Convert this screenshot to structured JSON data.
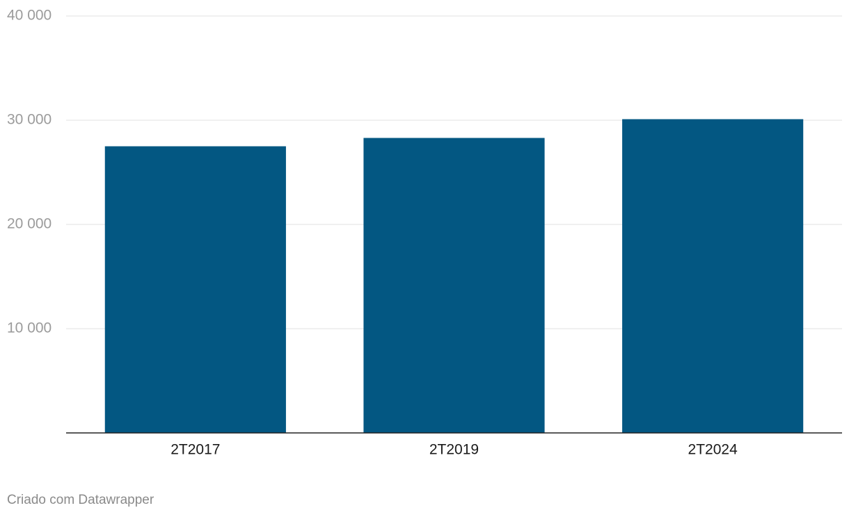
{
  "chart_data": {
    "type": "bar",
    "categories": [
      "2T2017",
      "2T2019",
      "2T2024"
    ],
    "values": [
      27500,
      28300,
      30100
    ],
    "color": "#035782",
    "ylim": [
      0,
      40000
    ],
    "yticks": [
      {
        "value": 10000,
        "label": "10 000"
      },
      {
        "value": 20000,
        "label": "20 000"
      },
      {
        "value": 30000,
        "label": "30 000"
      },
      {
        "value": 40000,
        "label": "40 000"
      }
    ],
    "grid": true,
    "credit": "Criado com Datawrapper"
  }
}
